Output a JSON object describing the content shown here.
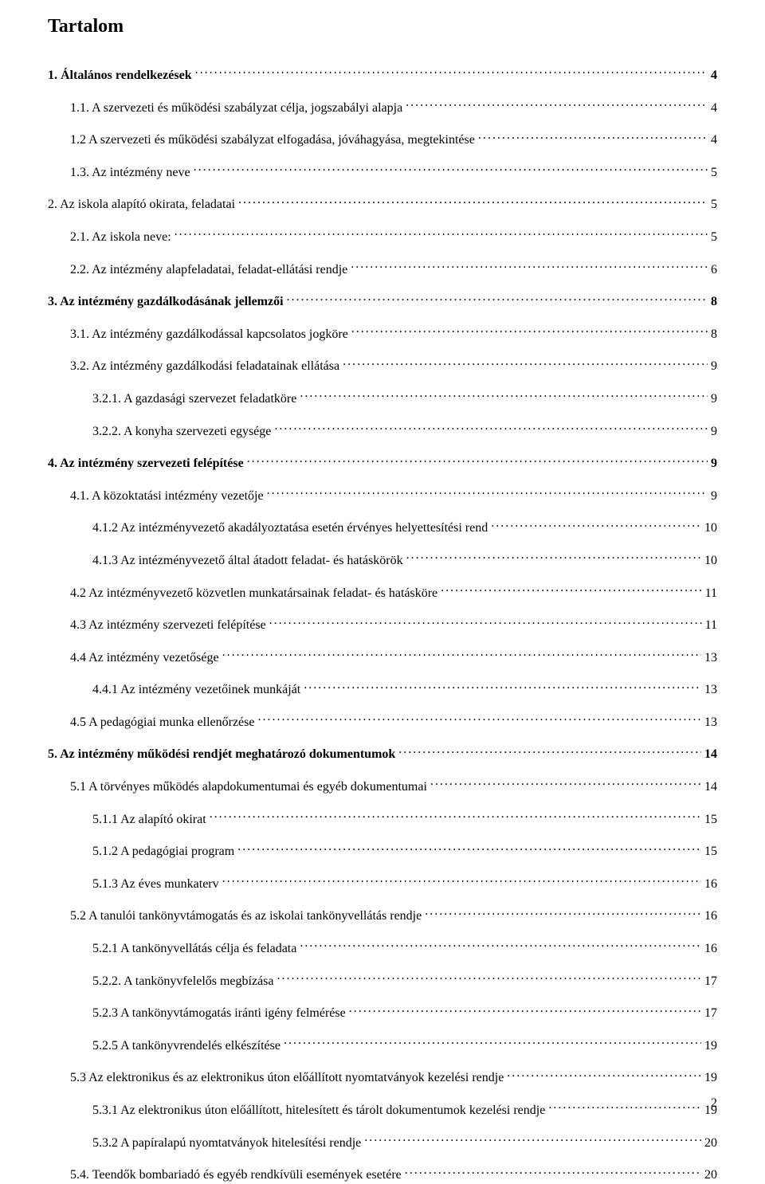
{
  "title": "Tartalom",
  "page_number": "2",
  "toc": [
    {
      "label": "1. Általános rendelkezések",
      "page": "4",
      "bold": true,
      "indent": 0
    },
    {
      "label": "1.1. A szervezeti és működési szabályzat célja, jogszabályi alapja",
      "page": "4",
      "bold": false,
      "indent": 1
    },
    {
      "label": "1.2 A szervezeti és működési szabályzat elfogadása, jóváhagyása, megtekintése",
      "page": "4",
      "bold": false,
      "indent": 1
    },
    {
      "label": "1.3. Az intézmény neve",
      "page": "5",
      "bold": false,
      "indent": 1
    },
    {
      "label": "2. Az iskola alapító okirata, feladatai",
      "page": "5",
      "bold": false,
      "indent": 0
    },
    {
      "label": "2.1. Az iskola neve:",
      "page": "5",
      "bold": false,
      "indent": 1
    },
    {
      "label": "2.2. Az intézmény alapfeladatai, feladat-ellátási rendje",
      "page": "6",
      "bold": false,
      "indent": 1
    },
    {
      "label": "3. Az intézmény gazdálkodásának jellemzői",
      "page": "8",
      "bold": true,
      "indent": 0
    },
    {
      "label": "3.1. Az intézmény gazdálkodással kapcsolatos jogköre",
      "page": "8",
      "bold": false,
      "indent": 1
    },
    {
      "label": "3.2. Az intézmény gazdálkodási feladatainak ellátása",
      "page": "9",
      "bold": false,
      "indent": 1
    },
    {
      "label": "3.2.1. A gazdasági szervezet feladatköre",
      "page": "9",
      "bold": false,
      "indent": 2
    },
    {
      "label": "3.2.2. A konyha szervezeti egysége",
      "page": "9",
      "bold": false,
      "indent": 2
    },
    {
      "label": "4. Az intézmény szervezeti felépítése",
      "page": "9",
      "bold": true,
      "indent": 0
    },
    {
      "label": "4.1. A közoktatási intézmény vezetője",
      "page": "9",
      "bold": false,
      "indent": 1
    },
    {
      "label": "4.1.2 Az intézményvezető akadályoztatása esetén érvényes helyettesítési rend",
      "page": "10",
      "bold": false,
      "indent": 2
    },
    {
      "label": "4.1.3 Az intézményvezető által átadott feladat- és hatáskörök",
      "page": "10",
      "bold": false,
      "indent": 2
    },
    {
      "label": "4.2 Az intézményvezető közvetlen munkatársainak feladat- és hatásköre",
      "page": "11",
      "bold": false,
      "indent": 1
    },
    {
      "label": "4.3 Az intézmény szervezeti felépítése",
      "page": "11",
      "bold": false,
      "indent": 1
    },
    {
      "label": "4.4 Az intézmény vezetősége",
      "page": "13",
      "bold": false,
      "indent": 1
    },
    {
      "label": "4.4.1 Az intézmény vezetőinek munkáját",
      "page": "13",
      "bold": false,
      "indent": 2
    },
    {
      "label": "4.5 A pedagógiai munka ellenőrzése",
      "page": "13",
      "bold": false,
      "indent": 1
    },
    {
      "label": "5. Az intézmény működési rendjét meghatározó dokumentumok",
      "page": "14",
      "bold": true,
      "indent": 0
    },
    {
      "label": "5.1 A törvényes működés alapdokumentumai és egyéb dokumentumai",
      "page": "14",
      "bold": false,
      "indent": 1
    },
    {
      "label": "5.1.1    Az alapító okirat",
      "page": "15",
      "bold": false,
      "indent": 2
    },
    {
      "label": "5.1.2    A pedagógiai program",
      "page": "15",
      "bold": false,
      "indent": 2
    },
    {
      "label": "5.1.3  Az éves munkaterv",
      "page": "16",
      "bold": false,
      "indent": 2
    },
    {
      "label": "5.2 A tanulói tankönyvtámogatás és az iskolai tankönyvellátás rendje",
      "page": "16",
      "bold": false,
      "indent": 1
    },
    {
      "label": "5.2.1 A tankönyvellátás célja és feladata",
      "page": "16",
      "bold": false,
      "indent": 2
    },
    {
      "label": "5.2.2. A tankönyvfelelős megbízása",
      "page": "17",
      "bold": false,
      "indent": 2
    },
    {
      "label": "5.2.3 A tankönyvtámogatás iránti igény felmérése",
      "page": "17",
      "bold": false,
      "indent": 2
    },
    {
      "label": "5.2.5 A tankönyvrendelés elkészítése",
      "page": "19",
      "bold": false,
      "indent": 2
    },
    {
      "label": "5.3 Az elektronikus és az elektronikus úton előállított nyomtatványok kezelési rendje",
      "page": "19",
      "bold": false,
      "indent": 1
    },
    {
      "label": "5.3.1 Az elektronikus úton előállított, hitelesített és tárolt dokumentumok kezelési rendje",
      "page": "19",
      "bold": false,
      "indent": 2
    },
    {
      "label": "5.3.2 A papíralapú nyomtatványok hitelesítési rendje",
      "page": "20",
      "bold": false,
      "indent": 2
    },
    {
      "label": "5.4. Teendők bombariadó és egyéb rendkívüli események esetére",
      "page": "20",
      "bold": false,
      "indent": 1
    }
  ]
}
